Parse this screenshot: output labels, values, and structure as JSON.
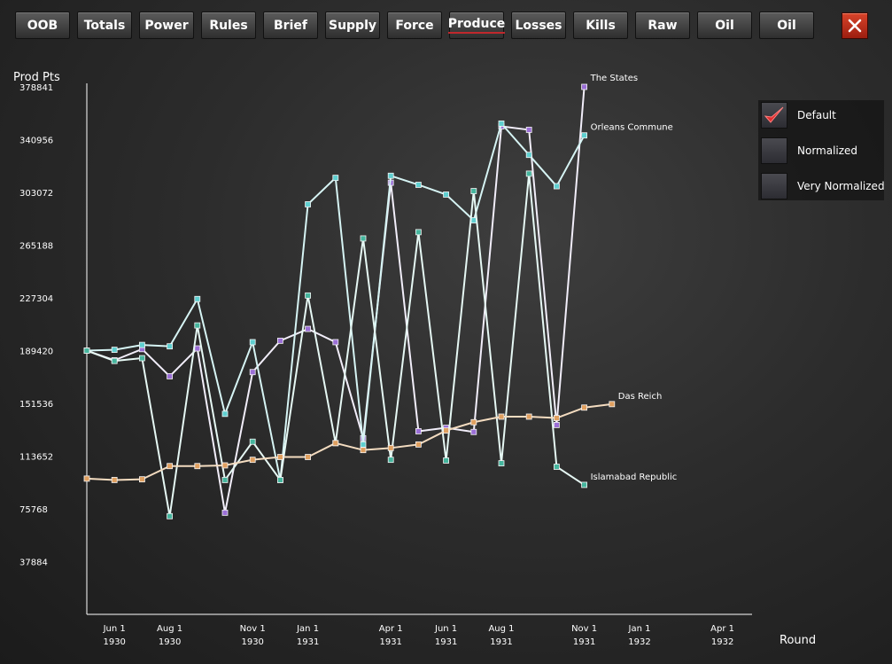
{
  "tabs": [
    "OOB",
    "Totals",
    "Power",
    "Rules",
    "Brief",
    "Supply",
    "Force",
    "Produce",
    "Losses",
    "Kills",
    "Raw",
    "Oil",
    "Oil"
  ],
  "active_tab": 7,
  "options": [
    {
      "label": "Default",
      "checked": true
    },
    {
      "label": "Normalized",
      "checked": false
    },
    {
      "label": "Very Normalized",
      "checked": false
    }
  ],
  "chart_data": {
    "type": "line",
    "ylabel": "Prod Pts",
    "xlabel": "Round",
    "ylim": [
      0,
      378841
    ],
    "xlim": [
      0,
      24
    ],
    "grid": false,
    "legend": "labels at line ends",
    "y_ticks": [
      37884,
      75768,
      113652,
      151536,
      189420,
      227304,
      265188,
      303072,
      340956,
      378841
    ],
    "x_ticks": [
      {
        "x": 1,
        "label": [
          "Jun 1",
          "1930"
        ]
      },
      {
        "x": 3,
        "label": [
          "Aug 1",
          "1930"
        ]
      },
      {
        "x": 6,
        "label": [
          "Nov 1",
          "1930"
        ]
      },
      {
        "x": 8,
        "label": [
          "Jan 1",
          "1931"
        ]
      },
      {
        "x": 11,
        "label": [
          "Apr 1",
          "1931"
        ]
      },
      {
        "x": 13,
        "label": [
          "Jun 1",
          "1931"
        ]
      },
      {
        "x": 15,
        "label": [
          "Aug 1",
          "1931"
        ]
      },
      {
        "x": 18,
        "label": [
          "Nov 1",
          "1931"
        ]
      },
      {
        "x": 20,
        "label": [
          "Jan 1",
          "1932"
        ]
      },
      {
        "x": 23,
        "label": [
          "Apr 1",
          "1932"
        ]
      }
    ],
    "series": [
      {
        "name": "The States",
        "color": "#f2eefa",
        "marker": "#9b6fd6",
        "values": [
          189400,
          182500,
          190500,
          171000,
          191000,
          73000,
          174000,
          196500,
          205000,
          195500,
          126500,
          310000,
          131500,
          134000,
          131000,
          350500,
          348000,
          136000,
          378841
        ]
      },
      {
        "name": "Orleans Commune",
        "color": "#d6f4f4",
        "marker": "#5fcfd0",
        "values": [
          189400,
          190000,
          193500,
          192500,
          226500,
          144000,
          195500,
          96500,
          294500,
          313500,
          122000,
          315000,
          308500,
          301500,
          283000,
          352500,
          330000,
          307500,
          344000
        ]
      },
      {
        "name": "Islamabad Republic",
        "color": "#e6f8f4",
        "marker": "#45b59d",
        "values": [
          189400,
          182000,
          184000,
          70500,
          207500,
          96500,
          124000,
          96500,
          229000,
          123000,
          270000,
          111000,
          274500,
          110500,
          304000,
          108500,
          316500,
          106000,
          93000
        ]
      },
      {
        "name": "Das Reich",
        "color": "#f4dcc0",
        "marker": "#e0a060",
        "values": [
          97500,
          96500,
          97000,
          106500,
          106500,
          107000,
          111000,
          113000,
          113000,
          123000,
          118000,
          119500,
          122000,
          132000,
          138000,
          142000,
          142000,
          141000,
          148500,
          151000
        ]
      }
    ]
  }
}
